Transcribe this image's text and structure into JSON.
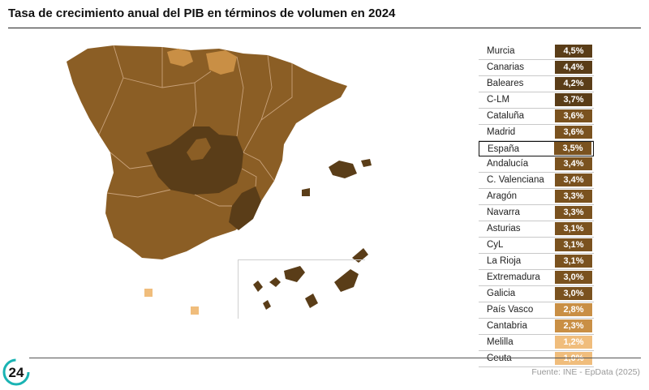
{
  "title": "Tasa de crecimiento anual del PIB en términos de volumen en 2024",
  "source": "Fuente: INE - EpData (2025)",
  "logo_text": "24",
  "colors": {
    "darkest": "#5a3d18",
    "dark": "#7a521f",
    "medium": "#8b5e25",
    "light": "#c98f45",
    "lightest": "#f0bd7c"
  },
  "ranking": [
    {
      "region": "Murcia",
      "value": "4,5%",
      "color": "#5a3d18"
    },
    {
      "region": "Canarias",
      "value": "4,4%",
      "color": "#5a3d18"
    },
    {
      "region": "Baleares",
      "value": "4,2%",
      "color": "#5a3d18"
    },
    {
      "region": "C-LM",
      "value": "3,7%",
      "color": "#5a3d18"
    },
    {
      "region": "Cataluña",
      "value": "3,6%",
      "color": "#7a521f"
    },
    {
      "region": "Madrid",
      "value": "3,6%",
      "color": "#7a521f"
    },
    {
      "region": "España",
      "value": "3,5%",
      "color": "#7a521f",
      "highlight": true
    },
    {
      "region": "Andalucía",
      "value": "3,4%",
      "color": "#7a521f"
    },
    {
      "region": "C. Valenciana",
      "value": "3,4%",
      "color": "#7a521f"
    },
    {
      "region": "Aragón",
      "value": "3,3%",
      "color": "#7a521f"
    },
    {
      "region": "Navarra",
      "value": "3,3%",
      "color": "#7a521f"
    },
    {
      "region": "Asturias",
      "value": "3,1%",
      "color": "#7a521f"
    },
    {
      "region": "CyL",
      "value": "3,1%",
      "color": "#7a521f"
    },
    {
      "region": "La Rioja",
      "value": "3,1%",
      "color": "#7a521f"
    },
    {
      "region": "Extremadura",
      "value": "3,0%",
      "color": "#7a521f"
    },
    {
      "region": "Galicia",
      "value": "3,0%",
      "color": "#7a521f"
    },
    {
      "region": "País Vasco",
      "value": "2,8%",
      "color": "#c98f45"
    },
    {
      "region": "Cantabria",
      "value": "2,3%",
      "color": "#c98f45"
    },
    {
      "region": "Melilla",
      "value": "1,2%",
      "color": "#f0bd7c"
    },
    {
      "region": "Ceuta",
      "value": "1,0%",
      "color": "#f0bd7c"
    }
  ]
}
